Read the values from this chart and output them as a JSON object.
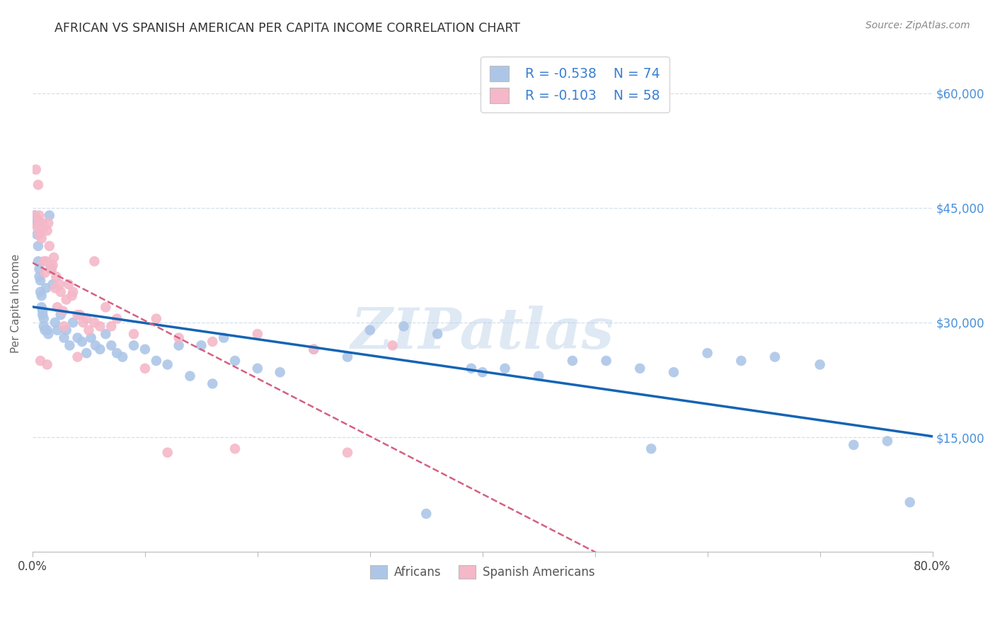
{
  "title": "AFRICAN VS SPANISH AMERICAN PER CAPITA INCOME CORRELATION CHART",
  "source": "Source: ZipAtlas.com",
  "ylabel": "Per Capita Income",
  "watermark": "ZIPatlas",
  "legend_african_R": "R = -0.538",
  "legend_african_N": "N = 74",
  "legend_spanish_R": "R = -0.103",
  "legend_spanish_N": "N = 58",
  "african_color": "#adc6e8",
  "african_line_color": "#1464b4",
  "spanish_color": "#f4b8c8",
  "spanish_line_color": "#d46080",
  "yticks": [
    0,
    15000,
    30000,
    45000,
    60000
  ],
  "ytick_labels": [
    "",
    "$15,000",
    "$30,000",
    "$45,000",
    "$60,000"
  ],
  "xlim": [
    0,
    0.8
  ],
  "ylim": [
    0,
    65000
  ],
  "african_x": [
    0.002,
    0.003,
    0.004,
    0.004,
    0.005,
    0.005,
    0.006,
    0.006,
    0.007,
    0.007,
    0.008,
    0.008,
    0.009,
    0.009,
    0.01,
    0.01,
    0.011,
    0.012,
    0.013,
    0.014,
    0.015,
    0.016,
    0.018,
    0.02,
    0.022,
    0.025,
    0.028,
    0.03,
    0.033,
    0.036,
    0.04,
    0.044,
    0.048,
    0.052,
    0.056,
    0.06,
    0.065,
    0.07,
    0.075,
    0.08,
    0.09,
    0.1,
    0.11,
    0.12,
    0.13,
    0.14,
    0.15,
    0.16,
    0.17,
    0.18,
    0.2,
    0.22,
    0.25,
    0.28,
    0.3,
    0.33,
    0.36,
    0.39,
    0.42,
    0.45,
    0.48,
    0.51,
    0.54,
    0.57,
    0.6,
    0.63,
    0.66,
    0.7,
    0.73,
    0.76,
    0.35,
    0.4,
    0.55,
    0.78
  ],
  "african_y": [
    44000,
    43000,
    43500,
    41500,
    40000,
    38000,
    37000,
    36000,
    35500,
    34000,
    33500,
    32000,
    31500,
    31000,
    30500,
    29500,
    29000,
    34500,
    29000,
    28500,
    44000,
    37000,
    35000,
    30000,
    29000,
    31000,
    28000,
    29000,
    27000,
    30000,
    28000,
    27500,
    26000,
    28000,
    27000,
    26500,
    28500,
    27000,
    26000,
    25500,
    27000,
    26500,
    25000,
    24500,
    27000,
    23000,
    27000,
    22000,
    28000,
    25000,
    24000,
    23500,
    26500,
    25500,
    29000,
    29500,
    28500,
    24000,
    24000,
    23000,
    25000,
    25000,
    24000,
    23500,
    26000,
    25000,
    25500,
    24500,
    14000,
    14500,
    5000,
    23500,
    13500,
    6500
  ],
  "spanish_x": [
    0.002,
    0.003,
    0.004,
    0.005,
    0.005,
    0.006,
    0.006,
    0.007,
    0.008,
    0.008,
    0.009,
    0.01,
    0.01,
    0.011,
    0.012,
    0.013,
    0.015,
    0.016,
    0.018,
    0.02,
    0.022,
    0.025,
    0.028,
    0.032,
    0.036,
    0.04,
    0.045,
    0.05,
    0.06,
    0.07,
    0.014,
    0.017,
    0.019,
    0.021,
    0.024,
    0.027,
    0.03,
    0.035,
    0.042,
    0.048,
    0.055,
    0.065,
    0.075,
    0.09,
    0.11,
    0.13,
    0.16,
    0.2,
    0.25,
    0.32,
    0.055,
    0.12,
    0.18,
    0.28,
    0.007,
    0.013,
    0.04,
    0.1
  ],
  "spanish_y": [
    44000,
    50000,
    42500,
    48000,
    43000,
    41500,
    44000,
    43000,
    41000,
    42000,
    43000,
    42500,
    38000,
    36500,
    38000,
    42000,
    40000,
    37500,
    37500,
    34500,
    32000,
    34000,
    29500,
    35000,
    34000,
    31000,
    30000,
    29000,
    29500,
    29500,
    43000,
    37000,
    38500,
    36000,
    35000,
    31500,
    33000,
    33500,
    31000,
    30500,
    30000,
    32000,
    30500,
    28500,
    30500,
    28000,
    27500,
    28500,
    26500,
    27000,
    38000,
    13000,
    13500,
    13000,
    25000,
    24500,
    25500,
    24000
  ]
}
